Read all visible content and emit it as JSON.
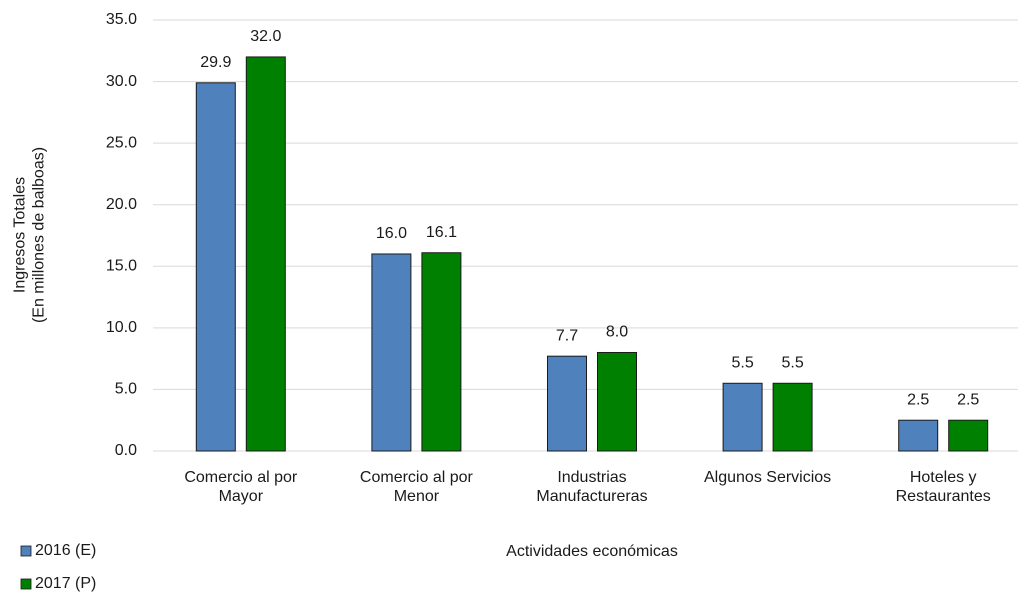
{
  "chart_data": {
    "type": "bar",
    "y_label": "Ingresos Totales\n(En millones  de balboas)",
    "x_label": "Actividades económicas",
    "categories": [
      "Comercio al por\nMayor",
      "Comercio al por\nMenor",
      "Industrias\nManufactureras",
      "Algunos Servicios",
      "Hoteles y\nRestaurantes"
    ],
    "series": [
      {
        "name": "2016 (E)",
        "color": "#4f81bd",
        "values": [
          29.9,
          16.0,
          7.7,
          5.5,
          2.5
        ],
        "value_labels": [
          "29.9",
          "16.0",
          "7.7",
          "5.5",
          "2.5"
        ]
      },
      {
        "name": "2017 (P)",
        "color": "#008000",
        "values": [
          32.0,
          16.1,
          8.0,
          5.5,
          2.5
        ],
        "value_labels": [
          "32.0",
          "16.1",
          "8.0",
          "5.5",
          "2.5"
        ]
      }
    ],
    "ylim": [
      0,
      35
    ],
    "yticks": [
      {
        "value": 0,
        "label": "0.0"
      },
      {
        "value": 5,
        "label": "5.0"
      },
      {
        "value": 10,
        "label": "10.0"
      },
      {
        "value": 15,
        "label": "15.0"
      },
      {
        "value": 20,
        "label": "20.0"
      },
      {
        "value": 25,
        "label": "25.0"
      },
      {
        "value": 30,
        "label": "30.0"
      },
      {
        "value": 35,
        "label": "35.0"
      }
    ],
    "grid": true,
    "legend": "bottom-left"
  }
}
